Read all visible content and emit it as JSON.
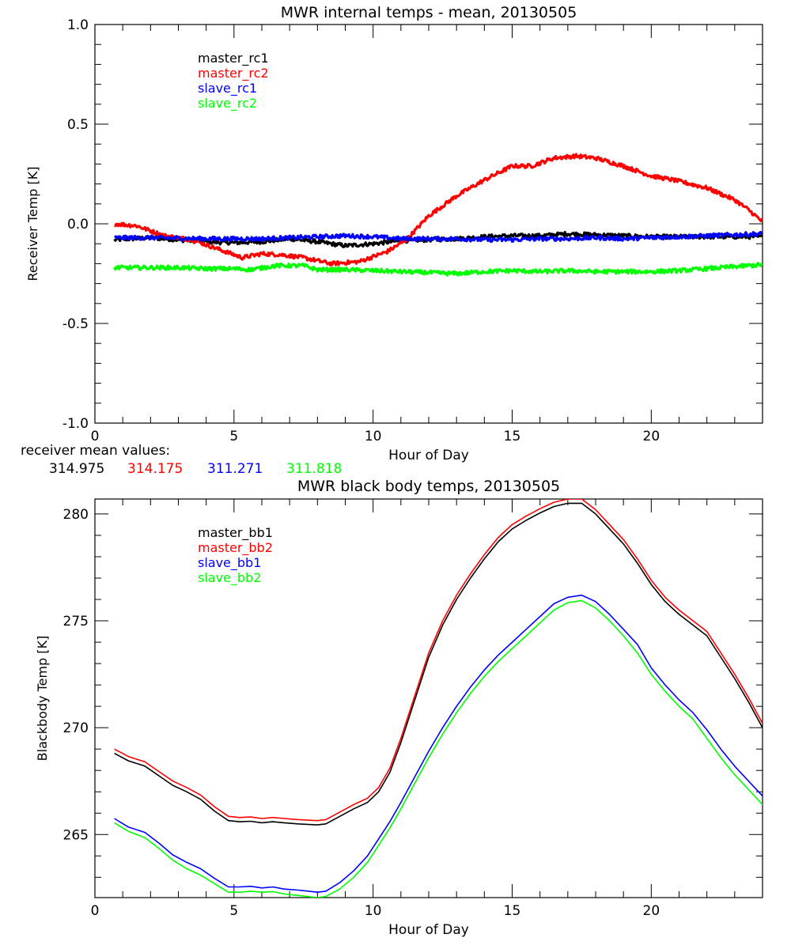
{
  "colors": {
    "black": "#000000",
    "red": "#ff0000",
    "blue": "#0000ff",
    "green": "#00ff00"
  },
  "receiver_means": {
    "label": "receiver mean values:",
    "values": [
      {
        "text": "314.975",
        "color": "#000000"
      },
      {
        "text": "314.175",
        "color": "#ff0000"
      },
      {
        "text": "311.271",
        "color": "#0000ff"
      },
      {
        "text": "311.818",
        "color": "#00ff00"
      }
    ]
  },
  "chart_data": [
    {
      "type": "line",
      "title": "MWR internal temps - mean, 20130505",
      "xlabel": "Hour of Day",
      "ylabel": "Receiver Temp [K]",
      "xlim": [
        0,
        24
      ],
      "ylim": [
        -1.0,
        1.0
      ],
      "xticks": [
        0,
        5,
        10,
        15,
        20
      ],
      "xtick_labels": [
        "0",
        "5",
        "10",
        "15",
        "20"
      ],
      "xminor_step": 1,
      "yticks": [
        -1.0,
        -0.5,
        0.0,
        0.5,
        1.0
      ],
      "ytick_labels": [
        "-1.0",
        "-0.5",
        "0.0",
        "0.5",
        "1.0"
      ],
      "yminor_step": 0.1,
      "grid": false,
      "legend_placement": "top-left",
      "noisy": true,
      "series": [
        {
          "name": "master_rc1",
          "color": "#000000",
          "x": [
            0.7,
            2,
            3,
            4,
            5,
            6,
            7,
            8,
            9,
            10,
            11,
            12,
            13,
            14,
            15,
            16,
            17,
            18,
            19,
            20,
            21,
            22,
            23,
            24
          ],
          "y": [
            -0.08,
            -0.07,
            -0.08,
            -0.09,
            -0.095,
            -0.09,
            -0.075,
            -0.09,
            -0.11,
            -0.1,
            -0.085,
            -0.08,
            -0.075,
            -0.065,
            -0.06,
            -0.06,
            -0.05,
            -0.055,
            -0.06,
            -0.065,
            -0.065,
            -0.065,
            -0.065,
            -0.065
          ]
        },
        {
          "name": "master_rc2",
          "color": "#ff0000",
          "x": [
            0.7,
            1.5,
            2.5,
            3.5,
            4.5,
            5.3,
            6.0,
            6.7,
            7.5,
            8.5,
            9.5,
            10.5,
            11.2,
            12.0,
            13.0,
            14.0,
            15.0,
            15.7,
            16.5,
            17.3,
            18.0,
            19.0,
            20.0,
            20.8,
            22.0,
            23.0,
            23.5,
            24.0
          ],
          "y": [
            0.0,
            -0.01,
            -0.06,
            -0.08,
            -0.13,
            -0.17,
            -0.15,
            -0.155,
            -0.17,
            -0.2,
            -0.19,
            -0.14,
            -0.08,
            0.04,
            0.14,
            0.22,
            0.29,
            0.29,
            0.33,
            0.34,
            0.33,
            0.29,
            0.24,
            0.22,
            0.18,
            0.12,
            0.07,
            0.01
          ]
        },
        {
          "name": "slave_rc1",
          "color": "#0000ff",
          "x": [
            0.7,
            2,
            4,
            6,
            8,
            9,
            10,
            11,
            12,
            13,
            14,
            15,
            16,
            17,
            18,
            19,
            20,
            21,
            22,
            23,
            24
          ],
          "y": [
            -0.07,
            -0.07,
            -0.075,
            -0.075,
            -0.065,
            -0.06,
            -0.065,
            -0.075,
            -0.075,
            -0.075,
            -0.08,
            -0.08,
            -0.075,
            -0.075,
            -0.07,
            -0.075,
            -0.07,
            -0.065,
            -0.06,
            -0.055,
            -0.05
          ]
        },
        {
          "name": "slave_rc2",
          "color": "#00ff00",
          "x": [
            0.7,
            2,
            3,
            4,
            5,
            5.6,
            6.5,
            7.5,
            8,
            9,
            10,
            11,
            12,
            13,
            14,
            15,
            16,
            17,
            18,
            19,
            20,
            21,
            22,
            23,
            24
          ],
          "y": [
            -0.22,
            -0.22,
            -0.22,
            -0.225,
            -0.225,
            -0.23,
            -0.21,
            -0.21,
            -0.23,
            -0.23,
            -0.235,
            -0.24,
            -0.245,
            -0.25,
            -0.24,
            -0.235,
            -0.24,
            -0.235,
            -0.24,
            -0.24,
            -0.24,
            -0.235,
            -0.225,
            -0.215,
            -0.205
          ]
        }
      ]
    },
    {
      "type": "line",
      "title": "MWR black body temps, 20130505",
      "xlabel": "Hour of Day",
      "ylabel": "Blackbody Temp [K]",
      "xlim": [
        0,
        24
      ],
      "ylim": [
        262.05,
        280.7
      ],
      "xticks": [
        0,
        5,
        10,
        15,
        20
      ],
      "xtick_labels": [
        "0",
        "5",
        "10",
        "15",
        "20"
      ],
      "xminor_step": 1,
      "yticks": [
        265,
        270,
        275,
        280
      ],
      "ytick_labels": [
        "265",
        "270",
        "275",
        "280"
      ],
      "yminor_step": 1,
      "grid": false,
      "legend_placement": "top-left",
      "noisy": false,
      "series": [
        {
          "name": "master_bb1",
          "color": "#000000",
          "x": [
            0.7,
            1.2,
            1.8,
            2.3,
            2.8,
            3.3,
            3.8,
            4.3,
            4.8,
            5.2,
            5.6,
            6.0,
            6.4,
            6.8,
            7.3,
            8.0,
            8.3,
            8.8,
            9.3,
            9.8,
            10.2,
            10.6,
            11.0,
            11.5,
            12.0,
            12.5,
            13.0,
            13.5,
            14.0,
            14.5,
            15.0,
            15.5,
            16.0,
            16.5,
            17.0,
            17.5,
            18.0,
            18.5,
            19.0,
            19.5,
            20.0,
            20.5,
            21.0,
            21.5,
            22.0,
            22.5,
            23.0,
            23.5,
            24.0
          ],
          "y": [
            268.8,
            268.45,
            268.2,
            267.75,
            267.3,
            267.0,
            266.65,
            266.1,
            265.65,
            265.6,
            265.62,
            265.55,
            265.6,
            265.55,
            265.5,
            265.45,
            265.5,
            265.85,
            266.2,
            266.5,
            267.0,
            267.9,
            269.3,
            271.3,
            273.3,
            274.8,
            276.0,
            277.0,
            277.9,
            278.7,
            279.3,
            279.7,
            280.05,
            280.35,
            280.5,
            280.5,
            280.0,
            279.3,
            278.6,
            277.7,
            276.7,
            275.9,
            275.3,
            274.8,
            274.3,
            273.3,
            272.3,
            271.2,
            270.0
          ]
        },
        {
          "name": "master_bb2",
          "color": "#ff0000",
          "x": [
            0.7,
            1.2,
            1.8,
            2.3,
            2.8,
            3.3,
            3.8,
            4.3,
            4.8,
            5.2,
            5.6,
            6.0,
            6.4,
            6.8,
            7.3,
            8.0,
            8.3,
            8.8,
            9.3,
            9.8,
            10.2,
            10.6,
            11.0,
            11.5,
            12.0,
            12.5,
            13.0,
            13.5,
            14.0,
            14.5,
            15.0,
            15.5,
            16.0,
            16.5,
            17.0,
            17.5,
            18.0,
            18.5,
            19.0,
            19.5,
            20.0,
            20.5,
            21.0,
            21.5,
            22.0,
            22.5,
            23.0,
            23.5,
            24.0
          ],
          "y": [
            269.0,
            268.65,
            268.4,
            267.95,
            267.5,
            267.2,
            266.85,
            266.3,
            265.85,
            265.8,
            265.82,
            265.75,
            265.8,
            265.75,
            265.7,
            265.65,
            265.7,
            266.05,
            266.4,
            266.7,
            267.2,
            268.1,
            269.5,
            271.5,
            273.5,
            275.0,
            276.2,
            277.2,
            278.1,
            278.9,
            279.5,
            279.9,
            280.25,
            280.55,
            280.7,
            280.7,
            280.2,
            279.5,
            278.8,
            277.9,
            276.9,
            276.1,
            275.5,
            275.0,
            274.5,
            273.5,
            272.5,
            271.4,
            270.2
          ]
        },
        {
          "name": "slave_bb1",
          "color": "#0000ff",
          "x": [
            0.7,
            1.2,
            1.8,
            2.3,
            2.8,
            3.3,
            3.8,
            4.3,
            4.8,
            5.2,
            5.6,
            6.0,
            6.4,
            6.8,
            7.3,
            8.0,
            8.3,
            8.8,
            9.3,
            9.8,
            10.2,
            10.6,
            11.0,
            11.5,
            12.0,
            12.5,
            13.0,
            13.5,
            14.0,
            14.5,
            15.0,
            15.5,
            16.0,
            16.5,
            17.0,
            17.5,
            18.0,
            18.5,
            19.0,
            19.5,
            20.0,
            20.5,
            21.0,
            21.5,
            22.0,
            22.5,
            23.0,
            23.5,
            24.0
          ],
          "y": [
            265.75,
            265.35,
            265.1,
            264.6,
            264.05,
            263.7,
            263.4,
            262.95,
            262.55,
            262.55,
            262.58,
            262.5,
            262.55,
            262.45,
            262.4,
            262.3,
            262.35,
            262.75,
            263.3,
            264.0,
            264.8,
            265.6,
            266.5,
            267.7,
            268.9,
            270.0,
            271.0,
            271.9,
            272.7,
            273.4,
            274.0,
            274.6,
            275.2,
            275.8,
            276.1,
            276.2,
            275.9,
            275.3,
            274.6,
            273.9,
            272.8,
            272.0,
            271.3,
            270.7,
            269.9,
            269.0,
            268.2,
            267.5,
            266.8
          ]
        },
        {
          "name": "slave_bb2",
          "color": "#00ff00",
          "x": [
            0.7,
            1.2,
            1.8,
            2.3,
            2.8,
            3.3,
            3.8,
            4.3,
            4.8,
            5.2,
            5.6,
            6.0,
            6.4,
            6.8,
            7.3,
            8.0,
            8.3,
            8.8,
            9.3,
            9.8,
            10.2,
            10.6,
            11.0,
            11.5,
            12.0,
            12.5,
            13.0,
            13.5,
            14.0,
            14.5,
            15.0,
            15.5,
            16.0,
            16.5,
            17.0,
            17.5,
            18.0,
            18.5,
            19.0,
            19.5,
            20.0,
            20.5,
            21.0,
            21.5,
            22.0,
            22.5,
            23.0,
            23.5,
            24.0
          ],
          "y": [
            265.55,
            265.15,
            264.85,
            264.35,
            263.8,
            263.4,
            263.1,
            262.7,
            262.3,
            262.3,
            262.35,
            262.3,
            262.33,
            262.22,
            262.15,
            262.05,
            262.1,
            262.45,
            263.0,
            263.7,
            264.5,
            265.3,
            266.2,
            267.4,
            268.6,
            269.7,
            270.7,
            271.6,
            272.4,
            273.1,
            273.7,
            274.3,
            274.9,
            275.5,
            275.85,
            275.95,
            275.6,
            275.0,
            274.3,
            273.5,
            272.5,
            271.7,
            271.0,
            270.4,
            269.5,
            268.6,
            267.8,
            267.1,
            266.4
          ]
        }
      ]
    }
  ]
}
